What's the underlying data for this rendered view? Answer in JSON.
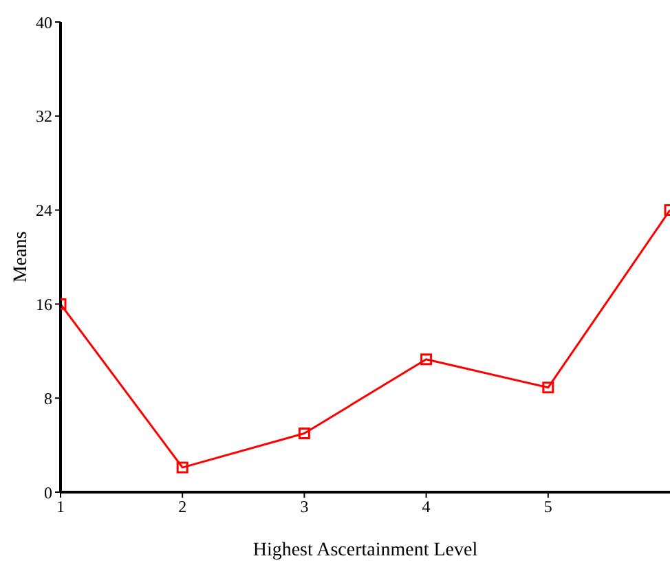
{
  "chart_data": {
    "type": "line",
    "xlabel": "Highest Ascertainment Level",
    "ylabel": "Means",
    "x": [
      1,
      2,
      3,
      4,
      5,
      6
    ],
    "series": [
      {
        "color": "#ff0000",
        "values": [
          16,
          2.1,
          5,
          11.3,
          8.9,
          24
        ]
      }
    ],
    "xlim": [
      1,
      6
    ],
    "xticks": [
      1,
      2,
      3,
      4,
      5
    ],
    "ylim": [
      0,
      40
    ],
    "yticks": [
      0,
      8,
      16,
      24,
      32,
      40
    ],
    "marker": "square",
    "line_style": "solid"
  }
}
